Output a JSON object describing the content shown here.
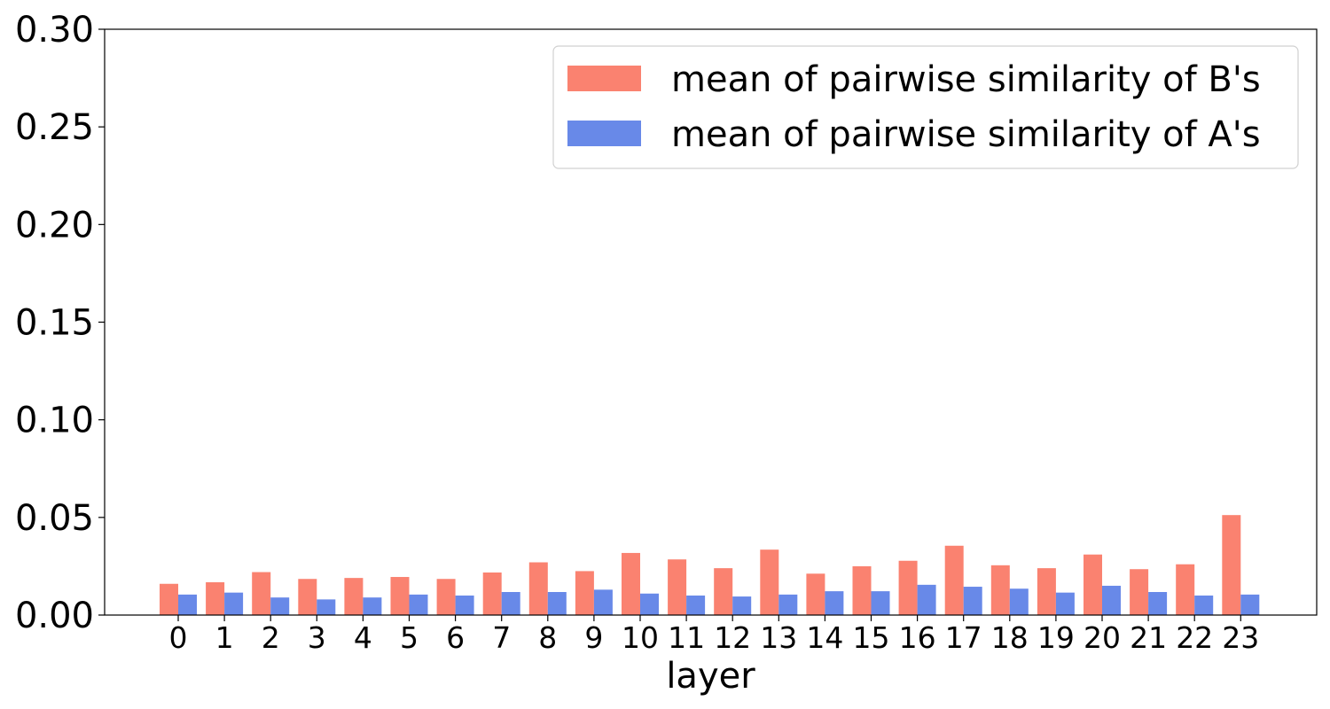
{
  "chart_data": {
    "type": "bar",
    "title": "",
    "xlabel": "layer",
    "ylabel": "",
    "categories": [
      "0",
      "1",
      "2",
      "3",
      "4",
      "5",
      "6",
      "7",
      "8",
      "9",
      "10",
      "11",
      "12",
      "13",
      "14",
      "15",
      "16",
      "17",
      "18",
      "19",
      "20",
      "21",
      "22",
      "23"
    ],
    "series": [
      {
        "name": "mean of pairwise similarity of B's",
        "color": "#FA8270",
        "values": [
          0.016,
          0.0168,
          0.022,
          0.0185,
          0.019,
          0.0195,
          0.0185,
          0.0218,
          0.027,
          0.0225,
          0.0318,
          0.0285,
          0.024,
          0.0335,
          0.0212,
          0.025,
          0.0278,
          0.0355,
          0.0255,
          0.024,
          0.031,
          0.0235,
          0.026,
          0.0512
        ]
      },
      {
        "name": "mean of pairwise similarity of A's",
        "color": "#6889E8",
        "values": [
          0.0105,
          0.0115,
          0.009,
          0.008,
          0.009,
          0.0105,
          0.01,
          0.0118,
          0.0118,
          0.013,
          0.011,
          0.01,
          0.0095,
          0.0105,
          0.0122,
          0.0122,
          0.0155,
          0.0145,
          0.0135,
          0.0115,
          0.015,
          0.0118,
          0.01,
          0.0105
        ]
      }
    ],
    "ylim": [
      0,
      0.3
    ],
    "yticks": [
      "0.00",
      "0.05",
      "0.10",
      "0.15",
      "0.20",
      "0.25",
      "0.30"
    ],
    "grid": false,
    "legend_position": "top-right"
  }
}
